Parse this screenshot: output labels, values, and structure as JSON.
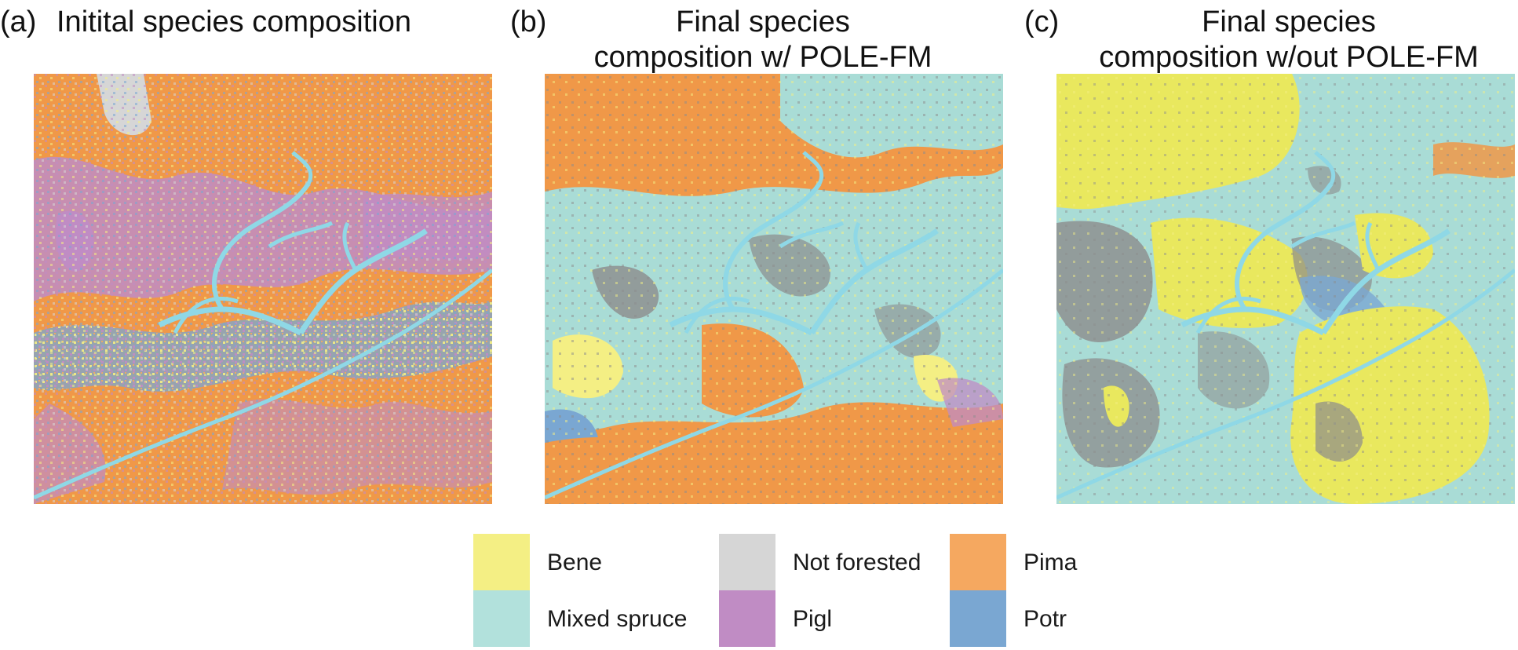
{
  "panels": [
    {
      "letter": "(a)",
      "title_lines": [
        "Initital species composition"
      ]
    },
    {
      "letter": "(b)",
      "title_lines": [
        "Final species",
        "composition w/ POLE-FM"
      ]
    },
    {
      "letter": "(c)",
      "title_lines": [
        "Final species",
        "composition w/out POLE-FM"
      ]
    }
  ],
  "legend": [
    {
      "label": "Bene",
      "color": "#f4ef84"
    },
    {
      "label": "Not forested",
      "color": "#d6d6d6"
    },
    {
      "label": "Pima",
      "color": "#f5a860"
    },
    {
      "label": "Mixed spruce",
      "color": "#b2e1dc"
    },
    {
      "label": "Pigl",
      "color": "#c08cc4"
    },
    {
      "label": "Potr",
      "color": "#7aa7d2"
    }
  ],
  "river_color": "#8fd8e6"
}
